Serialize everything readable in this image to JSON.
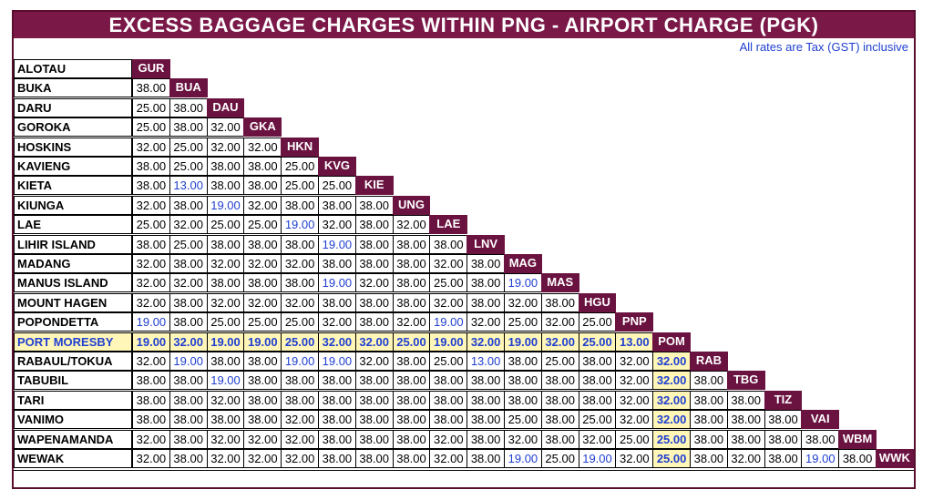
{
  "title": "EXCESS BAGGAGE CHARGES WITHIN PNG - AIRPORT CHARGE (PGK)",
  "note": "All rates  are Tax (GST) inclusive",
  "highlight_row": "PORT  MORESBY",
  "highlight_code": "POM",
  "colors": {
    "header_bg": "#6a1240",
    "title_bg": "#7a1848",
    "highlight_bg": "#fff6b8",
    "blue_text": "#1f3fd0"
  },
  "airports": [
    {
      "name": "ALOTAU",
      "code": "GUR",
      "rates": []
    },
    {
      "name": "BUKA",
      "code": "BUA",
      "rates": [
        "38.00"
      ]
    },
    {
      "name": "DARU",
      "code": "DAU",
      "rates": [
        "25.00",
        "38.00"
      ]
    },
    {
      "name": "GOROKA",
      "code": "GKA",
      "rates": [
        "25.00",
        "38.00",
        "32.00"
      ]
    },
    {
      "name": "HOSKINS",
      "code": "HKN",
      "rates": [
        "32.00",
        "25.00",
        "32.00",
        "32.00"
      ]
    },
    {
      "name": "KAVIENG",
      "code": "KVG",
      "rates": [
        "38.00",
        "25.00",
        "38.00",
        "38.00",
        "25.00"
      ]
    },
    {
      "name": "KIETA",
      "code": "KIE",
      "rates": [
        "38.00",
        "13.00",
        "38.00",
        "38.00",
        "25.00",
        "25.00"
      ]
    },
    {
      "name": "KIUNGA",
      "code": "UNG",
      "rates": [
        "32.00",
        "38.00",
        "19.00",
        "32.00",
        "38.00",
        "38.00",
        "38.00"
      ]
    },
    {
      "name": "LAE",
      "code": "LAE",
      "rates": [
        "25.00",
        "32.00",
        "25.00",
        "25.00",
        "19.00",
        "32.00",
        "38.00",
        "32.00"
      ]
    },
    {
      "name": "LIHIR ISLAND",
      "code": "LNV",
      "rates": [
        "38.00",
        "25.00",
        "38.00",
        "38.00",
        "38.00",
        "19.00",
        "38.00",
        "38.00",
        "38.00"
      ]
    },
    {
      "name": "MADANG",
      "code": "MAG",
      "rates": [
        "32.00",
        "38.00",
        "32.00",
        "32.00",
        "32.00",
        "38.00",
        "38.00",
        "38.00",
        "32.00",
        "38.00"
      ]
    },
    {
      "name": "MANUS  ISLAND",
      "code": "MAS",
      "rates": [
        "32.00",
        "32.00",
        "38.00",
        "38.00",
        "38.00",
        "19.00",
        "32.00",
        "38.00",
        "25.00",
        "38.00",
        "19.00"
      ]
    },
    {
      "name": "MOUNT  HAGEN",
      "code": "HGU",
      "rates": [
        "32.00",
        "38.00",
        "32.00",
        "32.00",
        "32.00",
        "38.00",
        "38.00",
        "38.00",
        "32.00",
        "38.00",
        "32.00",
        "38.00"
      ]
    },
    {
      "name": "POPONDETTA",
      "code": "PNP",
      "rates": [
        "19.00",
        "38.00",
        "25.00",
        "25.00",
        "25.00",
        "32.00",
        "38.00",
        "32.00",
        "19.00",
        "32.00",
        "25.00",
        "32.00",
        "25.00"
      ]
    },
    {
      "name": "PORT  MORESBY",
      "code": "POM",
      "rates": [
        "19.00",
        "32.00",
        "19.00",
        "19.00",
        "25.00",
        "32.00",
        "32.00",
        "25.00",
        "19.00",
        "32.00",
        "19.00",
        "32.00",
        "25.00",
        "13.00"
      ]
    },
    {
      "name": "RABAUL/TOKUA",
      "code": "RAB",
      "rates": [
        "32.00",
        "19.00",
        "38.00",
        "38.00",
        "19.00",
        "19.00",
        "32.00",
        "38.00",
        "25.00",
        "13.00",
        "38.00",
        "25.00",
        "38.00",
        "32.00",
        "32.00"
      ]
    },
    {
      "name": "TABUBIL",
      "code": "TBG",
      "rates": [
        "38.00",
        "38.00",
        "19.00",
        "38.00",
        "38.00",
        "38.00",
        "38.00",
        "38.00",
        "38.00",
        "38.00",
        "38.00",
        "38.00",
        "38.00",
        "32.00",
        "32.00",
        "38.00"
      ]
    },
    {
      "name": "TARI",
      "code": "TIZ",
      "rates": [
        "38.00",
        "38.00",
        "32.00",
        "38.00",
        "38.00",
        "38.00",
        "38.00",
        "38.00",
        "38.00",
        "38.00",
        "38.00",
        "38.00",
        "38.00",
        "32.00",
        "32.00",
        "38.00",
        "38.00"
      ]
    },
    {
      "name": "VANIMO",
      "code": "VAI",
      "rates": [
        "38.00",
        "38.00",
        "38.00",
        "38.00",
        "32.00",
        "38.00",
        "38.00",
        "38.00",
        "38.00",
        "38.00",
        "25.00",
        "38.00",
        "25.00",
        "32.00",
        "32.00",
        "38.00",
        "38.00",
        "38.00"
      ]
    },
    {
      "name": "WAPENAMANDA",
      "code": "WBM",
      "rates": [
        "32.00",
        "38.00",
        "32.00",
        "32.00",
        "32.00",
        "38.00",
        "38.00",
        "38.00",
        "32.00",
        "38.00",
        "32.00",
        "38.00",
        "32.00",
        "25.00",
        "25.00",
        "38.00",
        "38.00",
        "38.00",
        "38.00"
      ]
    },
    {
      "name": "WEWAK",
      "code": "WWK",
      "rates": [
        "32.00",
        "38.00",
        "32.00",
        "32.00",
        "32.00",
        "38.00",
        "38.00",
        "38.00",
        "32.00",
        "38.00",
        "19.00",
        "25.00",
        "19.00",
        "32.00",
        "25.00",
        "38.00",
        "32.00",
        "38.00",
        "19.00",
        "38.00"
      ]
    }
  ],
  "blue_cells": [
    [
      6,
      1
    ],
    [
      7,
      2
    ],
    [
      8,
      4
    ],
    [
      9,
      5
    ],
    [
      11,
      5
    ],
    [
      11,
      10
    ],
    [
      13,
      0
    ],
    [
      13,
      8
    ],
    [
      15,
      1
    ],
    [
      15,
      4
    ],
    [
      15,
      5
    ],
    [
      15,
      9
    ],
    [
      16,
      2
    ],
    [
      20,
      10
    ],
    [
      20,
      12
    ],
    [
      20,
      18
    ]
  ]
}
